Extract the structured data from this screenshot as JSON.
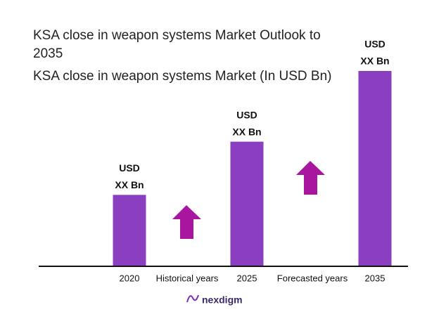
{
  "chart_data": {
    "type": "bar",
    "title": "KSA close in weapon systems Market Outlook to 2035",
    "subtitle": "KSA close in weapon systems Market (In USD Bn)",
    "categories": [
      "2020",
      "2025",
      "2035"
    ],
    "values": [
      101,
      177,
      278
    ],
    "value_labels": [
      [
        "USD",
        "XX Bn"
      ],
      [
        "USD",
        "XX Bn"
      ],
      [
        "USD",
        "XX Bn"
      ]
    ],
    "color": "#8a3fc0",
    "annotations": [
      "Historical years",
      "Forecasted years"
    ],
    "brand": "nexdigm"
  }
}
